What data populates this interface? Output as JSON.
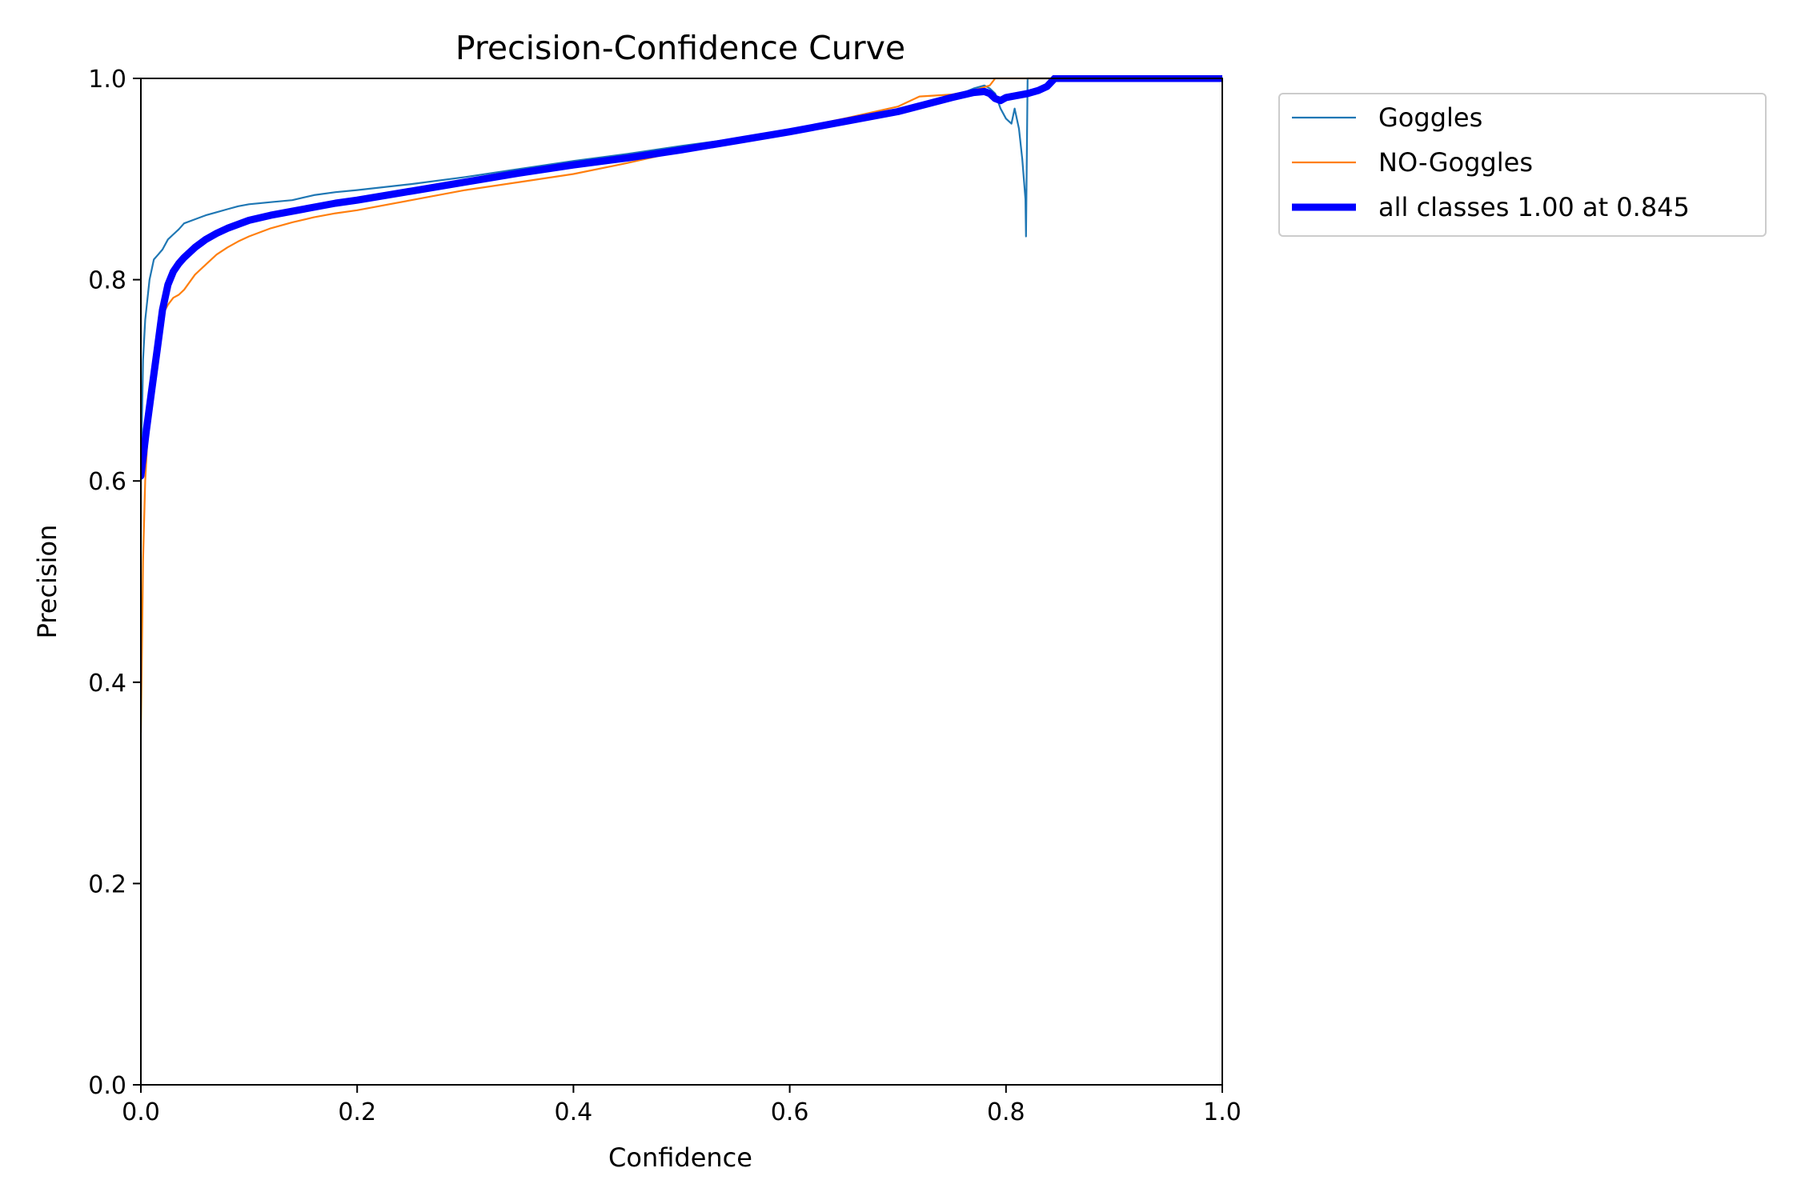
{
  "chart_data": {
    "type": "line",
    "title": "Precision-Confidence Curve",
    "xlabel": "Confidence",
    "ylabel": "Precision",
    "xlim": [
      0,
      1
    ],
    "ylim": [
      0,
      1
    ],
    "xticks": [
      "0.0",
      "0.2",
      "0.4",
      "0.6",
      "0.8",
      "1.0"
    ],
    "yticks": [
      "0.0",
      "0.2",
      "0.4",
      "0.6",
      "0.8",
      "1.0"
    ],
    "grid": false,
    "legend_position": "outside-top-right",
    "series": [
      {
        "name": "Goggles",
        "color": "#1f77b4",
        "width": "thin",
        "x": [
          0.0,
          0.002,
          0.004,
          0.006,
          0.008,
          0.012,
          0.016,
          0.02,
          0.025,
          0.03,
          0.035,
          0.04,
          0.05,
          0.06,
          0.07,
          0.08,
          0.09,
          0.1,
          0.12,
          0.14,
          0.16,
          0.18,
          0.2,
          0.25,
          0.3,
          0.35,
          0.4,
          0.45,
          0.5,
          0.55,
          0.6,
          0.65,
          0.7,
          0.75,
          0.77,
          0.78,
          0.785,
          0.79,
          0.795,
          0.8,
          0.805,
          0.808,
          0.812,
          0.815,
          0.818,
          0.8185,
          0.82,
          0.83,
          0.85,
          0.9,
          1.0
        ],
        "y": [
          0.6,
          0.72,
          0.76,
          0.78,
          0.8,
          0.82,
          0.825,
          0.83,
          0.84,
          0.845,
          0.85,
          0.856,
          0.86,
          0.864,
          0.867,
          0.87,
          0.873,
          0.875,
          0.877,
          0.879,
          0.884,
          0.887,
          0.889,
          0.895,
          0.902,
          0.91,
          0.918,
          0.925,
          0.933,
          0.94,
          0.948,
          0.958,
          0.968,
          0.981,
          0.99,
          0.993,
          0.99,
          0.985,
          0.97,
          0.96,
          0.955,
          0.97,
          0.95,
          0.92,
          0.88,
          0.843,
          1.0,
          1.0,
          1.0,
          1.0,
          1.0
        ]
      },
      {
        "name": "NO-Goggles",
        "color": "#ff7f0e",
        "width": "thin",
        "x": [
          0.0,
          0.002,
          0.004,
          0.006,
          0.008,
          0.012,
          0.016,
          0.02,
          0.025,
          0.03,
          0.035,
          0.04,
          0.05,
          0.06,
          0.07,
          0.08,
          0.09,
          0.1,
          0.12,
          0.14,
          0.16,
          0.18,
          0.2,
          0.25,
          0.3,
          0.35,
          0.4,
          0.45,
          0.5,
          0.55,
          0.6,
          0.65,
          0.7,
          0.72,
          0.75,
          0.77,
          0.785,
          0.79,
          0.8,
          0.85,
          0.9,
          1.0
        ],
        "y": [
          0.35,
          0.52,
          0.6,
          0.64,
          0.68,
          0.72,
          0.745,
          0.765,
          0.775,
          0.782,
          0.785,
          0.79,
          0.805,
          0.815,
          0.825,
          0.832,
          0.838,
          0.843,
          0.851,
          0.857,
          0.862,
          0.866,
          0.869,
          0.879,
          0.889,
          0.897,
          0.905,
          0.916,
          0.928,
          0.939,
          0.949,
          0.96,
          0.972,
          0.982,
          0.984,
          0.988,
          0.993,
          1.0,
          1.0,
          1.0,
          1.0,
          1.0
        ]
      },
      {
        "name": "all classes 1.00 at 0.845",
        "color": "#0000ff",
        "width": "thick",
        "x": [
          0.0,
          0.005,
          0.01,
          0.015,
          0.02,
          0.025,
          0.03,
          0.035,
          0.04,
          0.05,
          0.06,
          0.07,
          0.08,
          0.09,
          0.1,
          0.12,
          0.14,
          0.16,
          0.18,
          0.2,
          0.25,
          0.3,
          0.35,
          0.4,
          0.45,
          0.5,
          0.55,
          0.6,
          0.65,
          0.7,
          0.75,
          0.77,
          0.78,
          0.785,
          0.79,
          0.795,
          0.8,
          0.81,
          0.82,
          0.83,
          0.838,
          0.845,
          0.9,
          1.0
        ],
        "y": [
          0.605,
          0.65,
          0.69,
          0.73,
          0.77,
          0.795,
          0.808,
          0.816,
          0.822,
          0.832,
          0.84,
          0.846,
          0.851,
          0.855,
          0.859,
          0.864,
          0.868,
          0.872,
          0.876,
          0.879,
          0.888,
          0.897,
          0.906,
          0.914,
          0.921,
          0.929,
          0.938,
          0.947,
          0.957,
          0.967,
          0.981,
          0.986,
          0.987,
          0.985,
          0.98,
          0.978,
          0.981,
          0.983,
          0.985,
          0.988,
          0.992,
          1.0,
          1.0,
          1.0
        ]
      }
    ]
  }
}
